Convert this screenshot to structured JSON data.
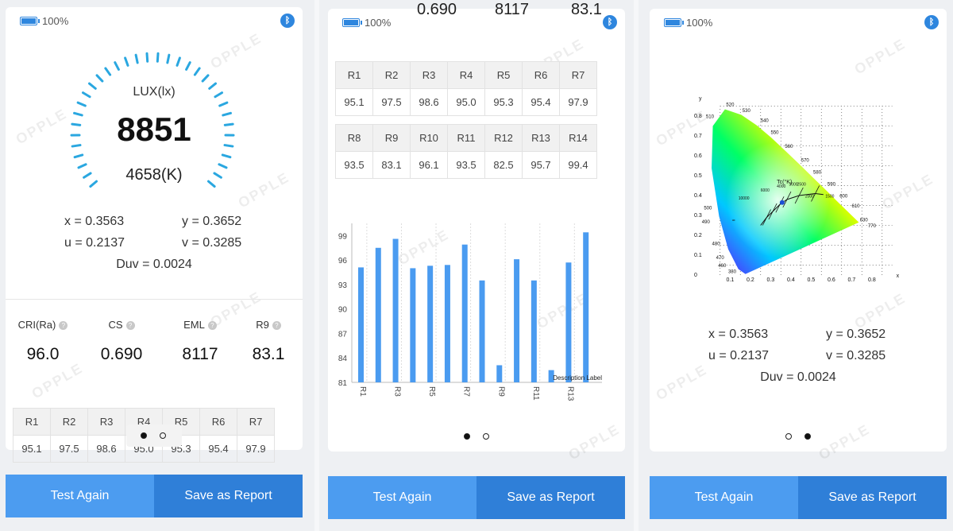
{
  "status": {
    "battery": "100%"
  },
  "watermark": "OPPLE",
  "panel1": {
    "lux_label": "LUX(lx)",
    "lux_value": "8851",
    "cct": "4658(K)",
    "x": "x = 0.3563",
    "y": "y = 0.3652",
    "u": "u = 0.2137",
    "v": "v = 0.3285",
    "duv": "Duv = 0.0024",
    "metrics": [
      {
        "label": "CRI(Ra)",
        "value": "96.0"
      },
      {
        "label": "CS",
        "value": "0.690"
      },
      {
        "label": "EML",
        "value": "8117"
      },
      {
        "label": "R9",
        "value": "83.1"
      }
    ],
    "table_heads": [
      "R1",
      "R2",
      "R3",
      "R4",
      "R5",
      "R6",
      "R7"
    ],
    "table_vals": [
      "95.1",
      "97.5",
      "98.6",
      "95.0",
      "95.3",
      "95.4",
      "97.9"
    ]
  },
  "panel2": {
    "top_partial": [
      "0.690",
      "8117",
      "83.1"
    ],
    "table1_heads": [
      "R1",
      "R2",
      "R3",
      "R4",
      "R5",
      "R6",
      "R7"
    ],
    "table1_vals": [
      "95.1",
      "97.5",
      "98.6",
      "95.0",
      "95.3",
      "95.4",
      "97.9"
    ],
    "table2_heads": [
      "R8",
      "R9",
      "R10",
      "R11",
      "R12",
      "R13",
      "R14"
    ],
    "table2_vals": [
      "93.5",
      "83.1",
      "96.1",
      "93.5",
      "82.5",
      "95.7",
      "99.4"
    ]
  },
  "chart_data": {
    "type": "bar",
    "categories": [
      "R1",
      "R2",
      "R3",
      "R4",
      "R5",
      "R6",
      "R7",
      "R8",
      "R9",
      "R10",
      "R11",
      "R12",
      "R13",
      "R14"
    ],
    "tick_labels": [
      "R1",
      "R3",
      "R5",
      "R7",
      "R9",
      "R11",
      "R13"
    ],
    "values": [
      95.1,
      97.5,
      98.6,
      95.0,
      95.3,
      95.4,
      97.9,
      93.5,
      83.1,
      96.1,
      93.5,
      82.5,
      95.7,
      99.4
    ],
    "ylim": [
      81,
      100.5
    ],
    "yticks": [
      81,
      84,
      87,
      90,
      93,
      96,
      99
    ],
    "annotation": "Description Label",
    "color": "#4a9bf0"
  },
  "panel3": {
    "x": "x = 0.3563",
    "y": "y = 0.3652",
    "u": "u = 0.2137",
    "v": "v = 0.3285",
    "duv": "Duv = 0.0024",
    "cie": {
      "y_axis": "y",
      "x_axis": "x",
      "yticks": [
        "0.8",
        "0.7",
        "0.6",
        "0.5",
        "0.4",
        "0.3",
        "0.2",
        "0.1",
        "0"
      ],
      "xticks": [
        "0.1",
        "0.2",
        "0.3",
        "0.4",
        "0.5",
        "0.6",
        "0.7",
        "0.8"
      ],
      "tc_label": "Tc(°K)",
      "wavelengths": [
        "520",
        "530",
        "540",
        "510",
        "550",
        "560",
        "570",
        "580",
        "590",
        "600",
        "610",
        "630",
        "770",
        "500",
        "490",
        "480",
        "470",
        "460",
        "380"
      ],
      "temps": [
        "10000",
        "6000",
        "4000",
        "3000",
        "2500",
        "2000",
        "1500",
        "∞"
      ],
      "point": {
        "x": 0.3563,
        "y": 0.3652
      }
    }
  },
  "buttons": {
    "test_again": "Test Again",
    "save_report": "Save as Report"
  }
}
